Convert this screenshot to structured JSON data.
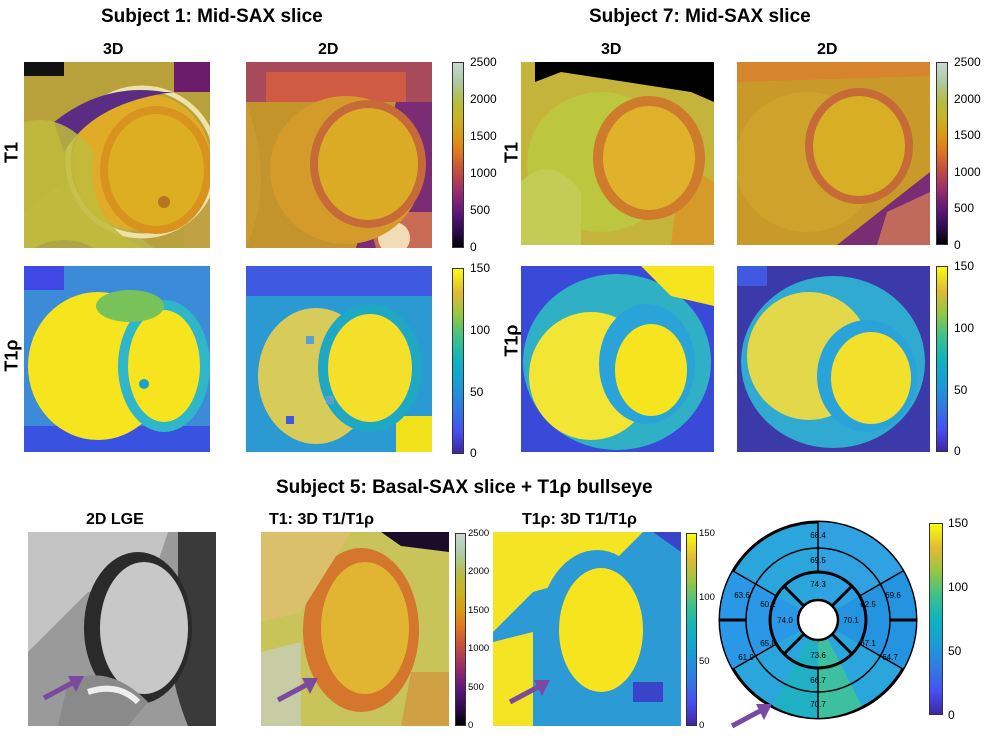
{
  "titles": {
    "subject1": "Subject 1: Mid-SAX slice",
    "subject7": "Subject 7: Mid-SAX slice",
    "subject5": "Subject 5: Basal-SAX slice + T1ρ bullseye"
  },
  "columns": {
    "s1_3d": "3D",
    "s1_2d": "2D",
    "s7_3d": "3D",
    "s7_2d": "2D",
    "lge": "2D LGE",
    "t1_3d": "T1: 3D T1/T1ρ",
    "rho_3d": "T1ρ: 3D T1/T1ρ"
  },
  "rows": {
    "s1_t1": "T1",
    "s1_rho": "T1ρ",
    "s7_t1": "T1",
    "s7_rho": "T1ρ"
  },
  "colorbars": {
    "t1_ticks": [
      "2500",
      "2000",
      "1500",
      "1000",
      "500",
      "0"
    ],
    "rho_ticks": [
      "150",
      "100",
      "50",
      "0"
    ],
    "t1_colormap": "plasma-like",
    "rho_colormap": "parula"
  },
  "bullseye": {
    "outer_ring": [
      "68.4",
      "69.6",
      "64.7",
      "70.7",
      "61.9",
      "63.6"
    ],
    "mid_ring": [
      "69.5",
      "62.5",
      "67.1",
      "66.7",
      "65.8",
      "60.2"
    ],
    "inner_ring": [
      "74.3",
      "70.1",
      "73.6",
      "74.0"
    ]
  },
  "colors": {
    "arrow": "#7b4aa0",
    "myocardium_rho": "#25a9d8",
    "blood_rho": "#f6e81e"
  }
}
